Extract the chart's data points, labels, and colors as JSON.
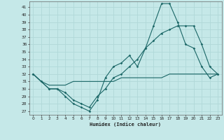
{
  "xlabel": "Humidex (Indice chaleur)",
  "xlim": [
    -0.5,
    23.5
  ],
  "ylim": [
    26.5,
    41.8
  ],
  "yticks": [
    27,
    28,
    29,
    30,
    31,
    32,
    33,
    34,
    35,
    36,
    37,
    38,
    39,
    40,
    41
  ],
  "xticks": [
    0,
    1,
    2,
    3,
    4,
    5,
    6,
    7,
    8,
    9,
    10,
    11,
    12,
    13,
    14,
    15,
    16,
    17,
    18,
    19,
    20,
    21,
    22,
    23
  ],
  "bg_color": "#c5e8e8",
  "grid_color": "#b0d8d8",
  "line_color": "#1a6666",
  "line1_y": [
    32,
    31,
    30,
    30,
    29,
    28,
    27.5,
    27,
    28.5,
    31.5,
    33,
    33.5,
    34.5,
    33,
    35.5,
    38.5,
    41.5,
    41.5,
    39,
    36,
    35.5,
    33,
    31.5,
    32
  ],
  "line2_y": [
    32,
    31,
    30,
    30,
    29.5,
    28.5,
    28,
    27.5,
    29,
    30,
    31.5,
    32,
    33,
    34,
    35.5,
    36.5,
    37.5,
    38,
    38.5,
    38.5,
    38.5,
    36,
    33,
    32
  ],
  "line3_y": [
    32,
    31,
    30.5,
    30.5,
    30.5,
    31,
    31,
    31,
    31,
    31,
    31,
    31.5,
    31.5,
    31.5,
    31.5,
    31.5,
    31.5,
    32,
    32,
    32,
    32,
    32,
    32,
    32
  ]
}
